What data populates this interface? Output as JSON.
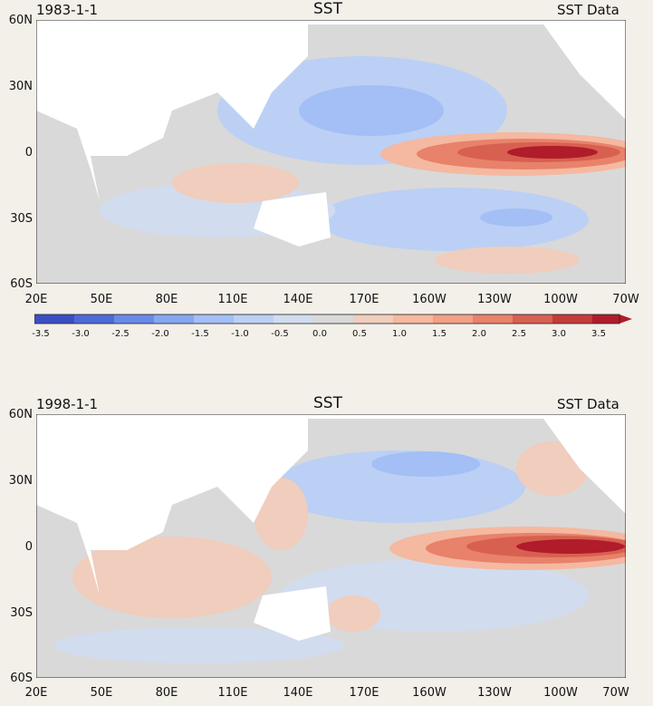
{
  "panels": [
    {
      "date": "1983-1-1",
      "title": "SST",
      "right_label": "SST Data",
      "lat_labels": [
        "60N",
        "30N",
        "0",
        "30S",
        "60S"
      ],
      "lon_labels": [
        "20E",
        "50E",
        "80E",
        "110E",
        "140E",
        "170E",
        "160W",
        "130W",
        "100W",
        "70W"
      ]
    },
    {
      "date": "1998-1-1",
      "title": "SST",
      "right_label": "SST Data",
      "lat_labels": [
        "60N",
        "30N",
        "0",
        "30S",
        "60S"
      ],
      "lon_labels": [
        "20E",
        "50E",
        "80E",
        "110E",
        "140E",
        "170E",
        "160W",
        "130W",
        "100W",
        "70W"
      ]
    }
  ],
  "colorbar": {
    "labels": [
      "-3.5",
      "-3.0",
      "-2.5",
      "-2.0",
      "-1.5",
      "-1.0",
      "-0.5",
      "0.0",
      "0.5",
      "1.0",
      "1.5",
      "2.0",
      "2.5",
      "3.0",
      "3.5"
    ],
    "colors": [
      "#3b4fc4",
      "#4e6ad8",
      "#6a8ae8",
      "#86a6f0",
      "#a3bff5",
      "#bcd0f5",
      "#d2dcef",
      "#d9d9d9",
      "#f0cdbc",
      "#f5b8a0",
      "#f2a086",
      "#e8826a",
      "#d86050",
      "#c43c3a",
      "#b01c2a"
    ]
  }
}
